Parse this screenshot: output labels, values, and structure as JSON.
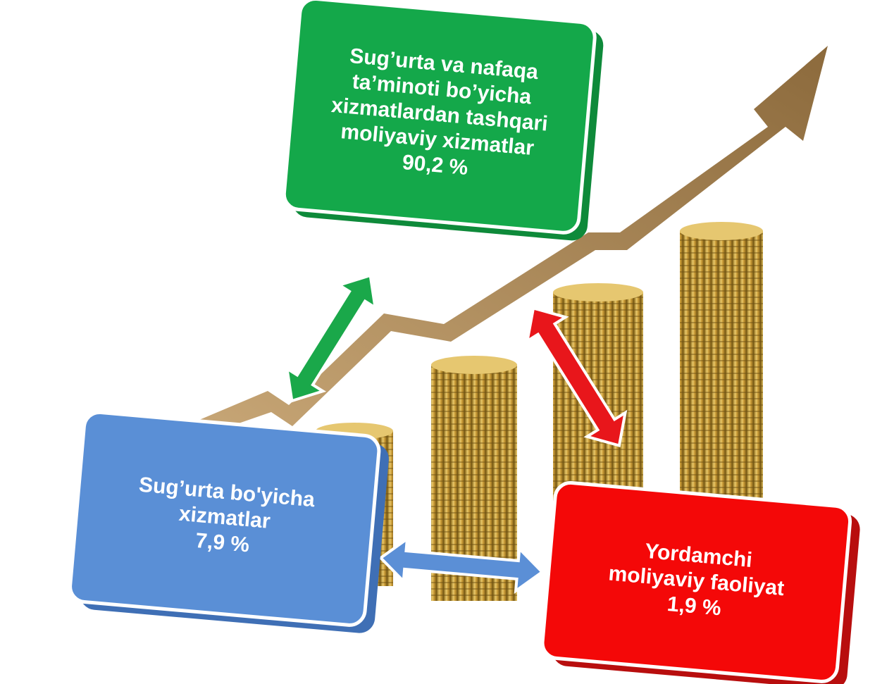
{
  "nodes": [
    {
      "lines": [
        "Sug’urta va nafaqa",
        "ta’minoti bo’yicha",
        "xizmatlardan tashqari",
        "moliyaviy xizmatlar",
        "90,2 %"
      ]
    },
    {
      "lines": [
        "Sug’urta bo'yicha",
        "xizmatlar",
        "7,9 %"
      ]
    },
    {
      "lines": [
        "Yordamchi",
        "moliyaviy faoliyat",
        "1,9 %"
      ]
    }
  ]
}
